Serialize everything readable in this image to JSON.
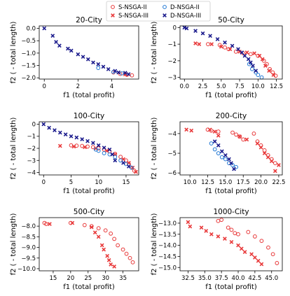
{
  "legend": {
    "placement": "top-center",
    "entries": [
      {
        "name": "S-NSGA-II",
        "color": "#e8393a",
        "marker": "open-circle"
      },
      {
        "name": "S-NSGA-III",
        "color": "#e8393a",
        "marker": "x"
      },
      {
        "name": "D-NSGA-II",
        "color": "#1f77d4",
        "marker": "open-circle"
      },
      {
        "name": "D-NSGA-III",
        "color": "#1a1a8c",
        "marker": "x"
      }
    ]
  },
  "chart_data": [
    {
      "type": "scatter",
      "title": "20-City",
      "xlabel": "f1 (total profit)",
      "ylabel": "f2 ( - total length)",
      "xlim": [
        -0.3,
        5.6
      ],
      "ylim": [
        -2.05,
        0.1
      ],
      "xticks": [
        0,
        2,
        4
      ],
      "yticks": [
        0.0,
        -0.5,
        -1.0,
        -1.5,
        -2.0
      ],
      "series": [
        {
          "name": "S-NSGA-II",
          "points": [
            [
              4.1,
              -1.78
            ],
            [
              4.5,
              -1.84
            ],
            [
              4.9,
              -1.88
            ],
            [
              5.2,
              -1.9
            ]
          ]
        },
        {
          "name": "S-NSGA-III",
          "points": [
            [
              4.8,
              -1.86
            ]
          ]
        },
        {
          "name": "D-NSGA-II",
          "points": [
            [
              3.2,
              -1.6
            ],
            [
              4.1,
              -1.76
            ],
            [
              4.6,
              -1.82
            ]
          ]
        },
        {
          "name": "D-NSGA-III",
          "points": [
            [
              0,
              0
            ],
            [
              0.5,
              -0.3
            ],
            [
              0.7,
              -0.55
            ],
            [
              0.9,
              -0.7
            ],
            [
              1.4,
              -0.82
            ],
            [
              1.6,
              -0.9
            ],
            [
              2.0,
              -1.05
            ],
            [
              2.3,
              -1.15
            ],
            [
              2.6,
              -1.25
            ],
            [
              2.9,
              -1.38
            ],
            [
              3.2,
              -1.45
            ],
            [
              3.5,
              -1.55
            ],
            [
              3.8,
              -1.65
            ],
            [
              4.2,
              -1.72
            ],
            [
              4.4,
              -1.78
            ],
            [
              4.8,
              -1.8
            ],
            [
              5.0,
              -1.85
            ]
          ]
        }
      ]
    },
    {
      "type": "scatter",
      "title": "50-City",
      "xlabel": "f1 (total profit)",
      "ylabel": "f2 ( - total length)",
      "xlim": [
        -0.6,
        13.3
      ],
      "ylim": [
        -3.1,
        0.1
      ],
      "xticks": [
        0.0,
        2.5,
        5.0,
        7.5,
        10.0,
        12.5
      ],
      "yticks": [
        0,
        -1,
        -2,
        -3
      ],
      "series": [
        {
          "name": "S-NSGA-II",
          "points": [
            [
              3.2,
              -1.0
            ],
            [
              4.8,
              -1.05
            ],
            [
              5.5,
              -1.2
            ],
            [
              6.0,
              -1.3
            ],
            [
              7.0,
              -1.45
            ],
            [
              8.0,
              -1.55
            ],
            [
              9.0,
              -1.6
            ],
            [
              10.0,
              -1.7
            ],
            [
              10.8,
              -2.0
            ],
            [
              11.2,
              -2.2
            ],
            [
              11.6,
              -2.5
            ],
            [
              12.0,
              -2.7
            ],
            [
              12.4,
              -2.9
            ]
          ]
        },
        {
          "name": "S-NSGA-III",
          "points": [
            [
              1.5,
              -0.95
            ],
            [
              2.0,
              -1.0
            ],
            [
              3.7,
              -1.0
            ],
            [
              5.0,
              -1.15
            ],
            [
              6.2,
              -1.3
            ],
            [
              7.5,
              -1.45
            ],
            [
              8.5,
              -1.5
            ],
            [
              9.5,
              -1.55
            ],
            [
              10.2,
              -1.7
            ],
            [
              10.6,
              -1.9
            ],
            [
              11.0,
              -2.3
            ],
            [
              11.5,
              -2.6
            ],
            [
              12.1,
              -2.85
            ]
          ]
        },
        {
          "name": "D-NSGA-II",
          "points": [
            [
              8.8,
              -2.2
            ],
            [
              9.2,
              -2.5
            ],
            [
              9.7,
              -2.7
            ],
            [
              10.0,
              -2.85
            ],
            [
              10.5,
              -3.0
            ]
          ]
        },
        {
          "name": "D-NSGA-III",
          "points": [
            [
              0,
              0
            ],
            [
              0.3,
              -0.05
            ],
            [
              1.5,
              -0.2
            ],
            [
              2.5,
              -0.35
            ],
            [
              3.5,
              -0.5
            ],
            [
              4.5,
              -0.7
            ],
            [
              5.5,
              -0.9
            ],
            [
              6.5,
              -1.1
            ],
            [
              7.3,
              -1.3
            ],
            [
              7.8,
              -1.5
            ],
            [
              8.2,
              -1.7
            ],
            [
              8.7,
              -1.9
            ],
            [
              9.0,
              -2.1
            ],
            [
              9.3,
              -2.3
            ],
            [
              9.7,
              -2.6
            ]
          ]
        }
      ]
    },
    {
      "type": "scatter",
      "title": "100-City",
      "xlabel": "f1 (total profit)",
      "ylabel": "f2 ( - total length)",
      "xlim": [
        -0.8,
        17.3
      ],
      "ylim": [
        -4.2,
        0.2
      ],
      "xticks": [
        0,
        5,
        10,
        15
      ],
      "yticks": [
        0,
        -1,
        -2,
        -3,
        -4
      ],
      "series": [
        {
          "name": "S-NSGA-II",
          "points": [
            [
              5.0,
              -1.75
            ],
            [
              6.0,
              -1.78
            ],
            [
              7.0,
              -1.8
            ],
            [
              8.0,
              -1.85
            ],
            [
              9.0,
              -1.9
            ],
            [
              10.0,
              -2.0
            ],
            [
              11.0,
              -2.1
            ],
            [
              12.0,
              -2.25
            ],
            [
              13.0,
              -2.45
            ],
            [
              14.0,
              -2.7
            ],
            [
              15.0,
              -3.0
            ],
            [
              15.5,
              -3.3
            ],
            [
              16.0,
              -3.6
            ],
            [
              16.5,
              -3.85
            ]
          ]
        },
        {
          "name": "S-NSGA-III",
          "points": [
            [
              3.0,
              -1.8
            ],
            [
              5.5,
              -1.85
            ],
            [
              7.5,
              -1.9
            ],
            [
              9.5,
              -2.0
            ],
            [
              11.5,
              -2.2
            ],
            [
              13.0,
              -2.5
            ],
            [
              14.5,
              -2.9
            ],
            [
              15.5,
              -3.2
            ],
            [
              16.2,
              -3.6
            ],
            [
              16.8,
              -3.95
            ]
          ]
        },
        {
          "name": "D-NSGA-II",
          "points": [
            [
              9.5,
              -2.1
            ],
            [
              10.0,
              -2.2
            ],
            [
              11.0,
              -2.4
            ],
            [
              12.0,
              -2.5
            ],
            [
              13.0,
              -2.7
            ],
            [
              14.0,
              -3.0
            ],
            [
              15.0,
              -3.3
            ],
            [
              16.0,
              -3.6
            ]
          ]
        },
        {
          "name": "D-NSGA-III",
          "points": [
            [
              0,
              0
            ],
            [
              1.0,
              -0.3
            ],
            [
              2.0,
              -0.5
            ],
            [
              3.0,
              -0.7
            ],
            [
              4.0,
              -0.85
            ],
            [
              5.0,
              -1.0
            ],
            [
              6.0,
              -1.1
            ],
            [
              7.0,
              -1.25
            ],
            [
              8.0,
              -1.4
            ],
            [
              9.0,
              -1.55
            ],
            [
              10.0,
              -1.75
            ],
            [
              11.0,
              -1.95
            ],
            [
              12.0,
              -2.1
            ],
            [
              12.5,
              -2.5
            ],
            [
              13.0,
              -3.0
            ],
            [
              14.5,
              -3.2
            ],
            [
              15.5,
              -3.5
            ]
          ]
        }
      ]
    },
    {
      "type": "scatter",
      "title": "200-City",
      "xlabel": "f1 (total profit)",
      "ylabel": "f2 ( - total length)",
      "xlim": [
        8.6,
        23.0
      ],
      "ylim": [
        -6.1,
        -3.4
      ],
      "xticks": [
        10.0,
        12.5,
        15.0,
        17.5,
        20.0,
        22.5
      ],
      "yticks": [
        -4,
        -5,
        -6
      ],
      "series": [
        {
          "name": "S-NSGA-II",
          "points": [
            [
              12.5,
              -3.8
            ],
            [
              13.0,
              -3.85
            ],
            [
              14.0,
              -3.9
            ],
            [
              16.0,
              -3.95
            ],
            [
              16.5,
              -4.05
            ],
            [
              17.0,
              -4.15
            ],
            [
              17.5,
              -4.3
            ],
            [
              19.0,
              -4.0
            ],
            [
              19.5,
              -4.4
            ],
            [
              20.0,
              -4.6
            ],
            [
              20.5,
              -4.85
            ],
            [
              21.0,
              -5.1
            ],
            [
              21.5,
              -5.3
            ],
            [
              22.0,
              -5.5
            ]
          ]
        },
        {
          "name": "S-NSGA-III",
          "points": [
            [
              9.5,
              -3.8
            ],
            [
              10.2,
              -3.85
            ],
            [
              12.8,
              -3.8
            ],
            [
              13.5,
              -3.9
            ],
            [
              14.0,
              -4.1
            ],
            [
              17.0,
              -4.15
            ],
            [
              18.0,
              -4.3
            ],
            [
              19.5,
              -4.5
            ],
            [
              20.0,
              -4.7
            ],
            [
              20.5,
              -5.0
            ],
            [
              21.0,
              -5.2
            ],
            [
              21.5,
              -5.4
            ],
            [
              22.0,
              -5.9
            ],
            [
              22.5,
              -5.6
            ]
          ]
        },
        {
          "name": "D-NSGA-II",
          "points": [
            [
              13.0,
              -4.5
            ],
            [
              13.5,
              -4.8
            ],
            [
              14.0,
              -5.0
            ],
            [
              14.5,
              -5.2
            ],
            [
              15.0,
              -5.3
            ],
            [
              15.5,
              -5.5
            ],
            [
              16.0,
              -5.6
            ],
            [
              16.5,
              -5.7
            ]
          ]
        },
        {
          "name": "D-NSGA-III",
          "points": [
            [
              13.5,
              -4.4
            ],
            [
              14.0,
              -4.6
            ],
            [
              14.5,
              -4.9
            ],
            [
              15.0,
              -5.1
            ],
            [
              15.5,
              -5.3
            ],
            [
              15.8,
              -5.5
            ],
            [
              16.2,
              -5.8
            ]
          ]
        }
      ]
    },
    {
      "type": "scatter",
      "title": "500-City",
      "xlabel": "f1 (total profit)",
      "ylabel": "f2 ( - total length)",
      "xlim": [
        11.0,
        39.5
      ],
      "ylim": [
        -10.1,
        -7.6
      ],
      "xticks": [
        15,
        20,
        25,
        30,
        35
      ],
      "yticks": [
        -8.0,
        -8.5,
        -9.0,
        -9.5,
        -10.0
      ],
      "series": [
        {
          "name": "S-NSGA-II",
          "points": [
            [
              12.5,
              -7.85
            ],
            [
              13.0,
              -7.9
            ],
            [
              20.0,
              -7.85
            ],
            [
              24.0,
              -7.95
            ],
            [
              26.0,
              -8.0
            ],
            [
              28.0,
              -8.1
            ],
            [
              30.0,
              -8.2
            ],
            [
              31.5,
              -8.35
            ],
            [
              32.5,
              -8.6
            ],
            [
              33.5,
              -8.9
            ],
            [
              35.0,
              -9.1
            ],
            [
              36.0,
              -9.3
            ],
            [
              37.0,
              -9.5
            ],
            [
              37.8,
              -9.7
            ]
          ]
        },
        {
          "name": "S-NSGA-III",
          "points": [
            [
              14.0,
              -7.9
            ],
            [
              20.5,
              -7.85
            ],
            [
              26.0,
              -8.05
            ],
            [
              27.0,
              -8.3
            ],
            [
              28.0,
              -8.5
            ],
            [
              29.0,
              -8.9
            ],
            [
              29.5,
              -9.1
            ],
            [
              30.5,
              -9.4
            ],
            [
              31.0,
              -9.6
            ],
            [
              31.5,
              -9.8
            ],
            [
              32.5,
              -9.9
            ]
          ]
        }
      ]
    },
    {
      "type": "scatter",
      "title": "1000-City",
      "xlabel": "f1 (total profit)",
      "ylabel": "f2 ( - total length)",
      "xlim": [
        31.3,
        46.6
      ],
      "ylim": [
        -15.15,
        -12.75
      ],
      "xticks": [
        32.5,
        35.0,
        37.5,
        40.0,
        42.5,
        45.0
      ],
      "yticks": [
        -13.0,
        -13.5,
        -14.0,
        -14.5,
        -15.0
      ],
      "series": [
        {
          "name": "S-NSGA-II",
          "points": [
            [
              37.0,
              -12.9
            ],
            [
              37.5,
              -12.85
            ],
            [
              38.5,
              -13.2
            ],
            [
              39.0,
              -13.3
            ],
            [
              39.5,
              -13.45
            ],
            [
              40.0,
              -13.5
            ],
            [
              41.5,
              -13.4
            ],
            [
              42.5,
              -13.6
            ],
            [
              43.5,
              -13.8
            ],
            [
              44.5,
              -14.1
            ],
            [
              45.2,
              -14.4
            ],
            [
              45.8,
              -14.8
            ]
          ]
        },
        {
          "name": "S-NSGA-III",
          "points": [
            [
              32.5,
              -12.95
            ],
            [
              32.8,
              -13.15
            ],
            [
              34.5,
              -13.2
            ],
            [
              35.2,
              -13.35
            ],
            [
              36.0,
              -13.5
            ],
            [
              37.0,
              -13.6
            ],
            [
              38.0,
              -13.7
            ],
            [
              39.0,
              -13.85
            ],
            [
              40.0,
              -14.0
            ],
            [
              40.5,
              -14.15
            ],
            [
              41.0,
              -14.3
            ],
            [
              42.0,
              -14.4
            ],
            [
              42.5,
              -14.55
            ],
            [
              43.0,
              -14.7
            ],
            [
              43.5,
              -14.85
            ]
          ]
        }
      ]
    }
  ]
}
